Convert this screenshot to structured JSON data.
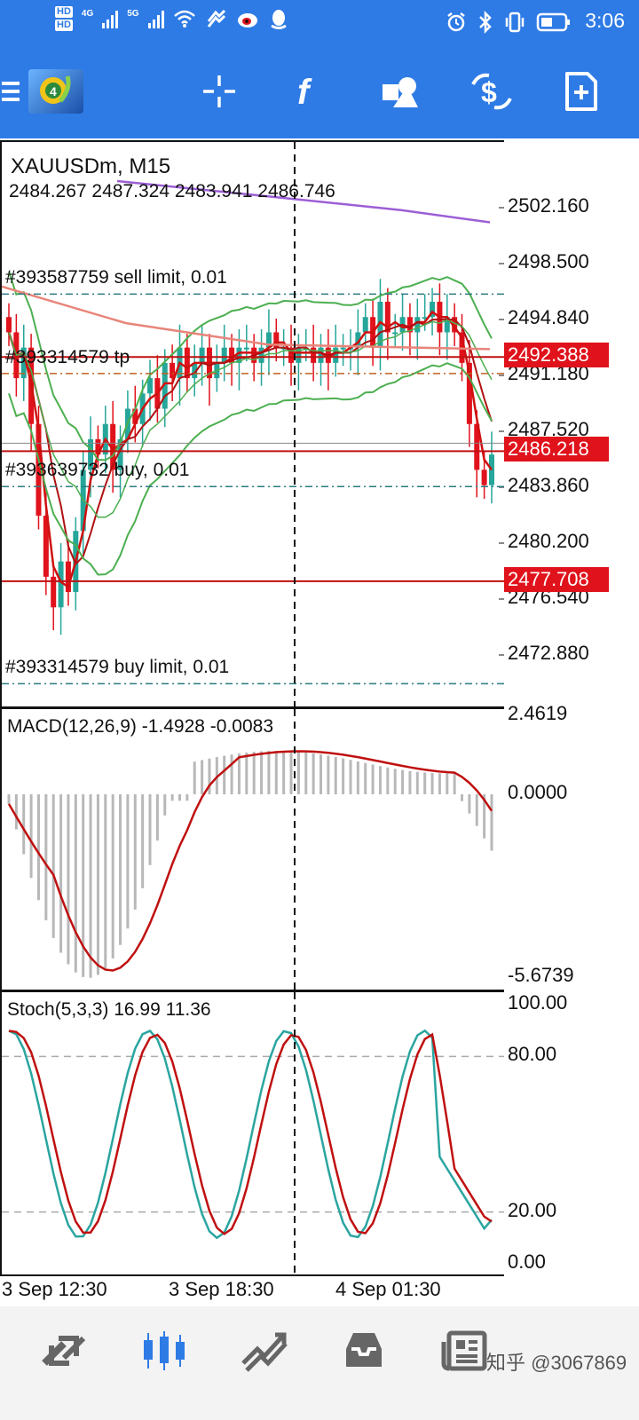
{
  "status_bar": {
    "time": "3:06",
    "hd1": "HD",
    "hd2": "HD",
    "net1": "4G",
    "net2": "5G"
  },
  "toolbar": {
    "icons": [
      "menu-icon",
      "metatrader-logo-icon",
      "crosshair-icon",
      "indicator-f-icon",
      "objects-icon",
      "trade-icon",
      "new-document-icon"
    ]
  },
  "main_chart": {
    "symbol": "XAUUSDm, M15",
    "ohlc": "2484.267 2487.324 2483.941 2486.746",
    "orders": [
      {
        "label": "#393587759 sell limit, 0.01",
        "price": 2496.5
      },
      {
        "label": "#393314579 tp",
        "price": 2491.3
      },
      {
        "label": "#393639732 buy, 0.01",
        "price": 2483.9
      },
      {
        "label": "#393314579 buy limit, 0.01",
        "price": 2471.0
      }
    ],
    "price_tags": [
      {
        "text": "2492.388",
        "price": 2492.388
      },
      {
        "text": "2486.218",
        "price": 2486.218
      },
      {
        "text": "2477.708",
        "price": 2477.708
      }
    ],
    "hidden_tag_text": "2486.746",
    "axis_labels": [
      "2502.160",
      "2498.500",
      "2494.840",
      "2491.180",
      "2487.520",
      "2483.860",
      "2480.200",
      "2476.540",
      "2472.880"
    ]
  },
  "macd": {
    "title": "MACD(12,26,9) -1.4928 -0.0083",
    "axis_labels": [
      "2.4619",
      "0.0000",
      "-5.6739"
    ]
  },
  "stoch": {
    "title": "Stoch(5,3,3) 16.99 11.36",
    "axis_labels": [
      "100.00",
      "80.00",
      "20.00",
      "0.00"
    ]
  },
  "time_axis": [
    "3 Sep 12:30",
    "3 Sep 18:30",
    "4 Sep 01:30"
  ],
  "colors": {
    "accent": "#2e7be6",
    "bull": "#26a69a",
    "bear": "#e0121b",
    "bollinger": "#4caf50",
    "ma_slow": "#9c5fd6",
    "ma_mid": "#e8857a"
  },
  "bottom_nav": {
    "items": [
      "quotes-icon",
      "chart-icon",
      "trade-icon",
      "history-icon",
      "news-icon"
    ],
    "watermark": "知乎 @3067869"
  }
}
